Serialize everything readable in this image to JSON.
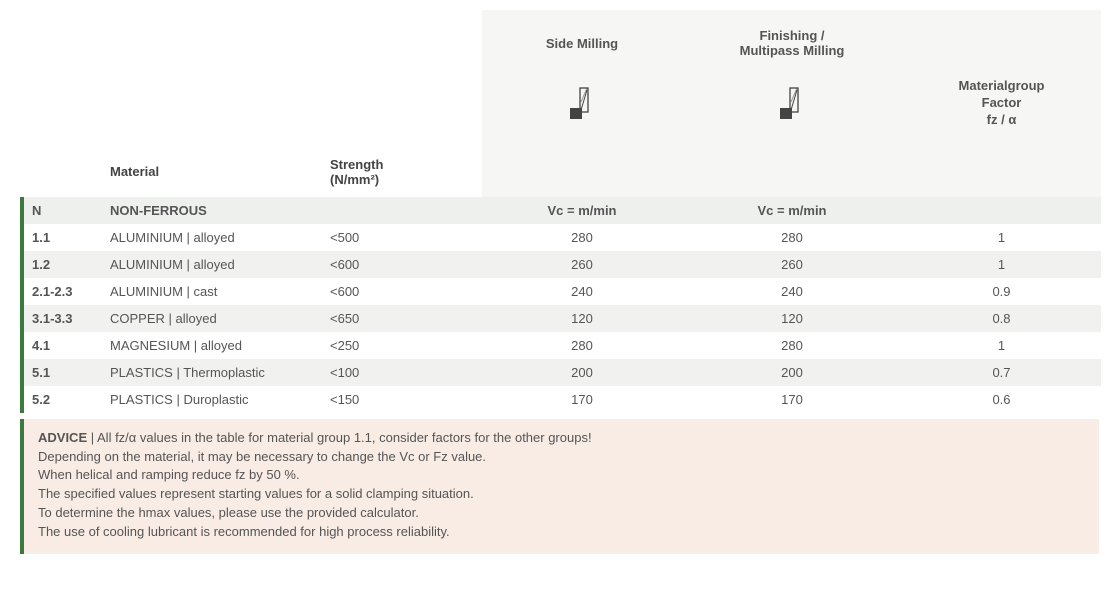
{
  "colors": {
    "accent": "#3a7a3f",
    "sectionRow": "#eef0ee",
    "altRow": "#f1f2f0",
    "headerBg": "#f6f6f4",
    "adviceBg": "#f8ece5",
    "text": "#555555"
  },
  "header": {
    "sideMilling": "Side Milling",
    "finishingMilling": "Finishing /\nMultipass Milling",
    "factor": "Materialgroup\nFactor\nfz / α",
    "material": "Material",
    "strength": "Strength\n(N/mm²)"
  },
  "section": {
    "code": "N",
    "name": "NON-FERROUS",
    "vcLabel": "Vc = m/min"
  },
  "rows": [
    {
      "code": "1.1",
      "material": "ALUMINIUM |  alloyed",
      "strength": "<500",
      "side": "280",
      "finish": "280",
      "factor": "1"
    },
    {
      "code": "1.2",
      "material": "ALUMINIUM | alloyed",
      "strength": "<600",
      "side": "260",
      "finish": "260",
      "factor": "1"
    },
    {
      "code": "2.1-2.3",
      "material": "ALUMINIUM | cast",
      "strength": "<600",
      "side": "240",
      "finish": "240",
      "factor": "0.9"
    },
    {
      "code": "3.1-3.3",
      "material": "COPPER | alloyed",
      "strength": "<650",
      "side": "120",
      "finish": "120",
      "factor": "0.8"
    },
    {
      "code": "4.1",
      "material": "MAGNESIUM | alloyed",
      "strength": "<250",
      "side": "280",
      "finish": "280",
      "factor": "1"
    },
    {
      "code": "5.1",
      "material": "PLASTICS | Thermoplastic",
      "strength": "<100",
      "side": "200",
      "finish": "200",
      "factor": "0.7"
    },
    {
      "code": "5.2",
      "material": "PLASTICS | Duroplastic",
      "strength": "<150",
      "side": "170",
      "finish": "170",
      "factor": "0.6"
    }
  ],
  "advice": {
    "label": "ADVICE",
    "sep": "  |  ",
    "lines": [
      "All fz/α values in the table for material group 1.1, consider factors for the other groups!",
      "Depending on the material, it may be necessary to change the Vc or Fz value.",
      "When helical and ramping reduce fz by 50 %.",
      "The specified values represent starting values for a solid clamping situation.",
      "To determine the hmax values, please use the provided calculator.",
      "The use of cooling lubricant is recommended for high process reliability."
    ]
  },
  "layout": {
    "tableType": "table",
    "columns": [
      "code",
      "material",
      "strength",
      "side_milling",
      "finishing_milling",
      "factor"
    ],
    "columnWidthsPx": [
      80,
      220,
      160,
      200,
      220,
      199
    ],
    "fontSizePx": 13
  }
}
